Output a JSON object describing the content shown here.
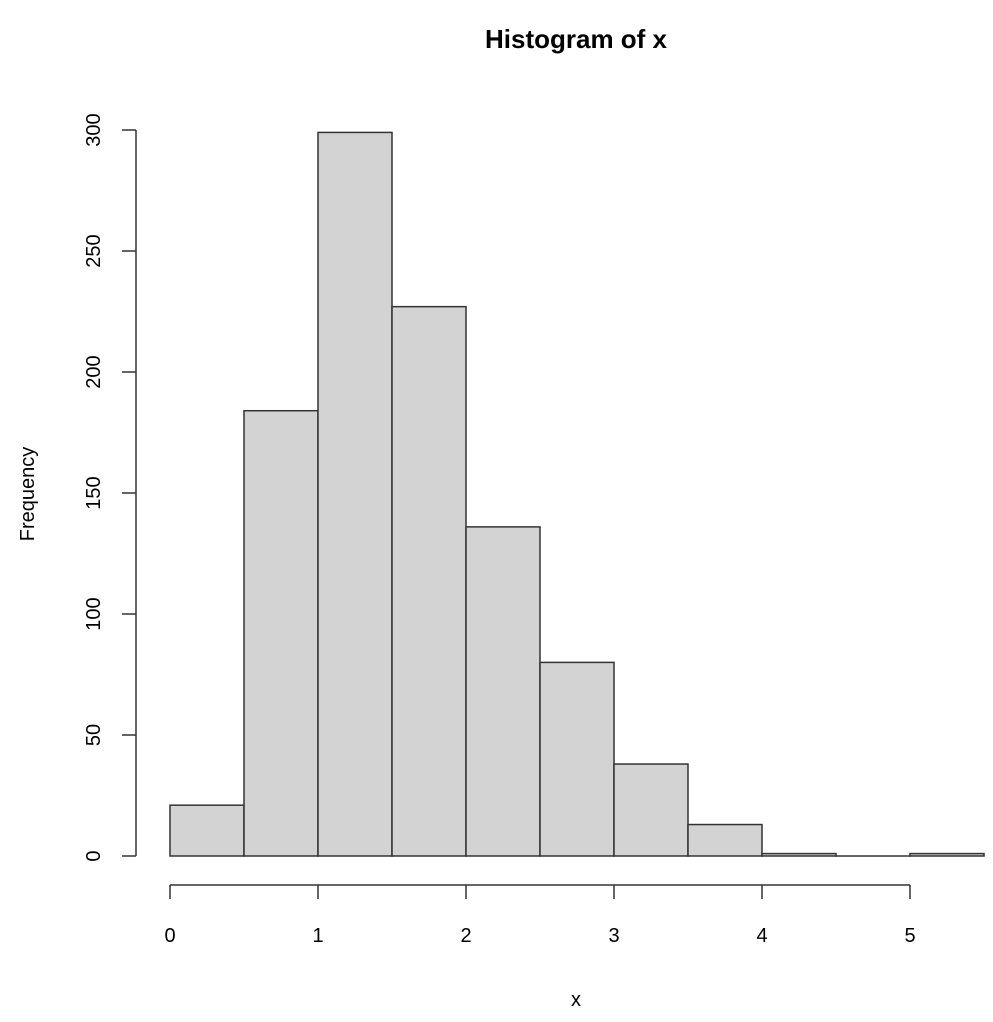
{
  "chart_data": {
    "type": "bar",
    "subtype": "histogram",
    "title": "Histogram of x",
    "xlabel": "x",
    "ylabel": "Frequency",
    "bins": [
      {
        "from": 0.0,
        "to": 0.5,
        "count": 21
      },
      {
        "from": 0.5,
        "to": 1.0,
        "count": 184
      },
      {
        "from": 1.0,
        "to": 1.5,
        "count": 299
      },
      {
        "from": 1.5,
        "to": 2.0,
        "count": 227
      },
      {
        "from": 2.0,
        "to": 2.5,
        "count": 136
      },
      {
        "from": 2.5,
        "to": 3.0,
        "count": 80
      },
      {
        "from": 3.0,
        "to": 3.5,
        "count": 38
      },
      {
        "from": 3.5,
        "to": 4.0,
        "count": 13
      },
      {
        "from": 4.0,
        "to": 4.5,
        "count": 1
      },
      {
        "from": 4.5,
        "to": 5.0,
        "count": 0
      },
      {
        "from": 5.0,
        "to": 5.5,
        "count": 1
      }
    ],
    "categories": [
      "0-0.5",
      "0.5-1",
      "1-1.5",
      "1.5-2",
      "2-2.5",
      "2.5-3",
      "3-3.5",
      "3.5-4",
      "4-4.5",
      "4.5-5",
      "5-5.5"
    ],
    "values": [
      21,
      184,
      299,
      227,
      136,
      80,
      38,
      13,
      1,
      0,
      1
    ],
    "xticks": [
      "0",
      "1",
      "2",
      "3",
      "4",
      "5"
    ],
    "yticks": [
      "0",
      "50",
      "100",
      "150",
      "200",
      "250",
      "300"
    ],
    "xlim": [
      0,
      5.5
    ],
    "ylim": [
      0,
      300
    ],
    "grid": false,
    "legend": null,
    "colors": {
      "bar_fill": "#d3d3d3",
      "bar_stroke": "#333333"
    }
  }
}
